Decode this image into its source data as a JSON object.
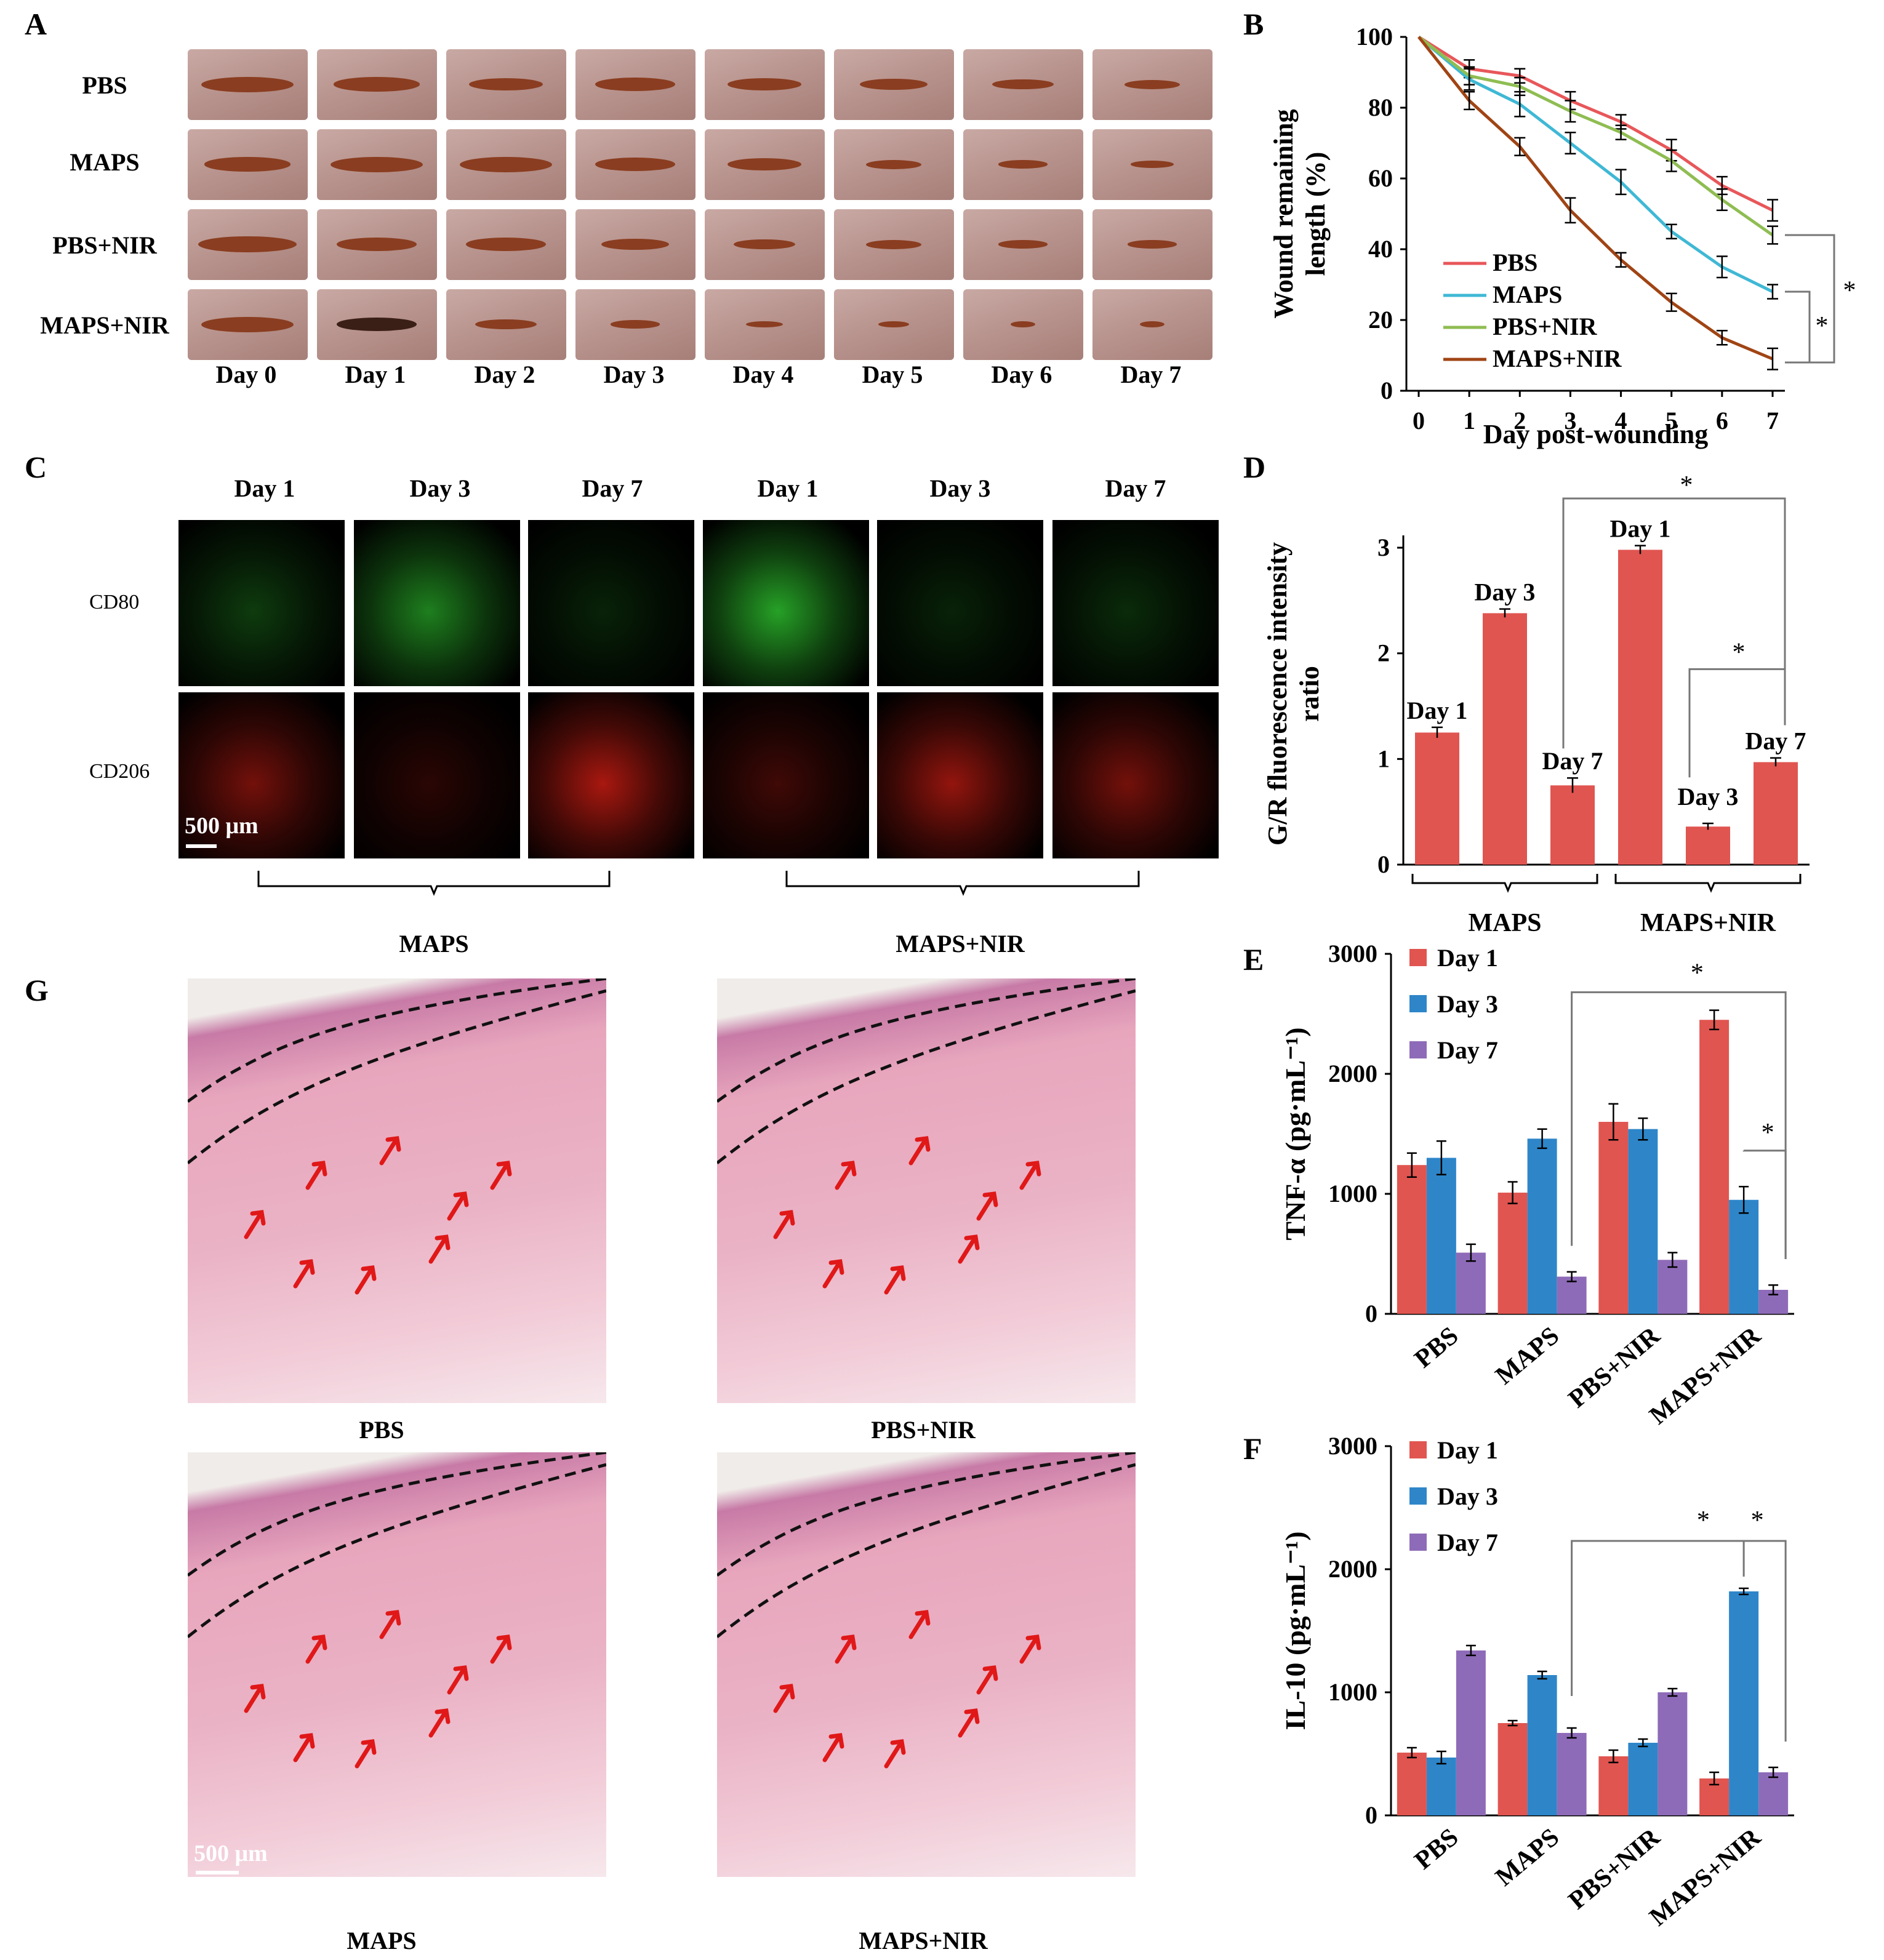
{
  "panels": {
    "A": "A",
    "B": "B",
    "C": "C",
    "D": "D",
    "E": "E",
    "F": "F",
    "G": "G"
  },
  "panelA": {
    "rows": [
      "PBS",
      "MAPS",
      "PBS+NIR",
      "MAPS+NIR"
    ],
    "days": [
      "Day 0",
      "Day 1",
      "Day 2",
      "Day 3",
      "Day 4",
      "Day 5",
      "Day 6",
      "Day 7"
    ]
  },
  "panelC": {
    "col_labels": [
      "Day 1",
      "Day 3",
      "Day 7",
      "Day 1",
      "Day 3",
      "Day 7"
    ],
    "row_labels": [
      "CD80",
      "CD206"
    ],
    "scale_bar": "500 μm",
    "groups": [
      "MAPS",
      "MAPS+NIR"
    ]
  },
  "panelG": {
    "labels": [
      "PBS",
      "PBS+NIR",
      "MAPS",
      "MAPS+NIR"
    ],
    "scale_bar": "500 μm"
  },
  "chart_data": [
    {
      "id": "B",
      "type": "line",
      "ylabel_line1": "Wound remaining",
      "ylabel_line2": "length (%)",
      "xlabel": "Day post-wounding",
      "x": [
        0,
        1,
        2,
        3,
        4,
        5,
        6,
        7
      ],
      "ylim": [
        0,
        100
      ],
      "yticks": [
        "0",
        "20",
        "40",
        "60",
        "80",
        "100"
      ],
      "xticks": [
        "0",
        "1",
        "2",
        "3",
        "4",
        "5",
        "6",
        "7"
      ],
      "series": [
        {
          "name": "PBS",
          "color": "#e8575a",
          "values": [
            100,
            91,
            89,
            82,
            76,
            68,
            58,
            51
          ],
          "err": [
            2,
            2.5,
            2,
            2.5,
            2,
            3,
            2.5,
            3
          ]
        },
        {
          "name": "MAPS",
          "color": "#3fb8d5",
          "values": [
            100,
            88,
            81,
            70,
            59,
            45,
            35,
            28
          ],
          "err": [
            2,
            3,
            3.5,
            3,
            3.5,
            2,
            3,
            2
          ]
        },
        {
          "name": "PBS+NIR",
          "color": "#8fbd52",
          "values": [
            100,
            89,
            86,
            79,
            73,
            65,
            54,
            44
          ],
          "err": [
            2,
            2.5,
            2.5,
            3,
            2,
            3,
            3,
            2.5
          ]
        },
        {
          "name": "MAPS+NIR",
          "color": "#a04414",
          "values": [
            100,
            82,
            69,
            51,
            37,
            25,
            15,
            9
          ],
          "err": [
            2,
            2.5,
            2.5,
            3.5,
            2,
            2.5,
            2,
            3
          ]
        }
      ],
      "significance": [
        "*",
        "*"
      ]
    },
    {
      "id": "D",
      "type": "bar",
      "ylabel_line1": "G/R fluorescence intensity",
      "ylabel_line2": "ratio",
      "ylim": [
        0,
        3
      ],
      "yticks": [
        "0",
        "1",
        "2",
        "3"
      ],
      "color": "#e05550",
      "bars": [
        {
          "label": "Day 1",
          "value": 1.25,
          "err": 0.05
        },
        {
          "label": "Day 3",
          "value": 2.38,
          "err": 0.04
        },
        {
          "label": "Day 7",
          "value": 0.75,
          "err": 0.07
        },
        {
          "label": "Day 1",
          "value": 2.98,
          "err": 0.04
        },
        {
          "label": "Day 3",
          "value": 0.36,
          "err": 0.03
        },
        {
          "label": "Day 7",
          "value": 0.97,
          "err": 0.04
        }
      ],
      "groups": [
        "MAPS",
        "MAPS+NIR"
      ],
      "significance": [
        "*",
        "*"
      ]
    },
    {
      "id": "E",
      "type": "bar",
      "ylabel": "TNF-α (pg·mL⁻¹)",
      "ylim": [
        0,
        3000
      ],
      "yticks": [
        "0",
        "1000",
        "2000",
        "3000"
      ],
      "categories": [
        "PBS",
        "MAPS",
        "PBS+NIR",
        "MAPS+NIR"
      ],
      "series": [
        {
          "name": "Day 1",
          "color": "#e05550",
          "values": [
            1240,
            1010,
            1600,
            2450
          ],
          "err": [
            100,
            90,
            150,
            80
          ]
        },
        {
          "name": "Day 3",
          "color": "#2e86c9",
          "values": [
            1300,
            1460,
            1540,
            950
          ],
          "err": [
            140,
            80,
            90,
            110
          ]
        },
        {
          "name": "Day 7",
          "color": "#8e6bb8",
          "values": [
            510,
            310,
            450,
            200
          ],
          "err": [
            70,
            40,
            60,
            40
          ]
        }
      ],
      "significance": [
        "*",
        "*"
      ]
    },
    {
      "id": "F",
      "type": "bar",
      "ylabel": "IL-10 (pg·mL⁻¹)",
      "ylim": [
        0,
        3000
      ],
      "yticks": [
        "0",
        "1000",
        "2000",
        "3000"
      ],
      "categories": [
        "PBS",
        "MAPS",
        "PBS+NIR",
        "MAPS+NIR"
      ],
      "series": [
        {
          "name": "Day 1",
          "color": "#e05550",
          "values": [
            510,
            750,
            480,
            300
          ],
          "err": [
            40,
            20,
            50,
            50
          ]
        },
        {
          "name": "Day 3",
          "color": "#2e86c9",
          "values": [
            470,
            1140,
            590,
            1820
          ],
          "err": [
            50,
            30,
            30,
            25
          ]
        },
        {
          "name": "Day 7",
          "color": "#8e6bb8",
          "values": [
            1340,
            670,
            1000,
            350
          ],
          "err": [
            40,
            40,
            30,
            40
          ]
        }
      ],
      "significance": [
        "*",
        "*"
      ]
    }
  ]
}
